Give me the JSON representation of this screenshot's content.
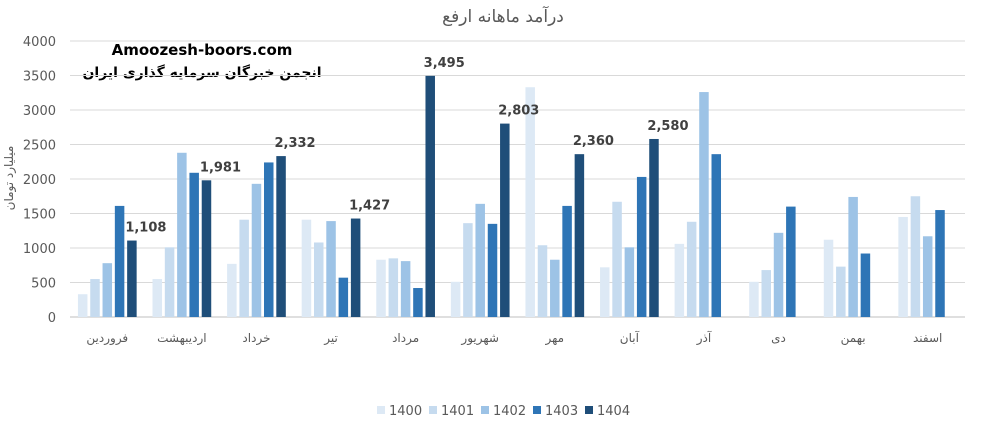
{
  "chart_data": {
    "type": "bar",
    "title": "درآمد ماهانه ارفع",
    "ylabel": "میلیارد تومان",
    "xlabel": "",
    "ylim": [
      0,
      4000
    ],
    "yticks": [
      0,
      500,
      1000,
      1500,
      2000,
      2500,
      3000,
      3500,
      4000
    ],
    "grid": true,
    "legend_position": "bottom",
    "watermark": {
      "line1": "Amoozesh-boors.com",
      "line2": "انجمن خبرگان سرمایه گذاری ایران"
    },
    "categories": [
      "فروردین",
      "اردیبهشت",
      "خرداد",
      "تیر",
      "مرداد",
      "شهریور",
      "مهر",
      "آبان",
      "آذر",
      "دی",
      "بهمن",
      "اسفند"
    ],
    "series": [
      {
        "name": "1400",
        "color": "#dde9f5",
        "values": [
          330,
          550,
          770,
          1410,
          830,
          510,
          3330,
          720,
          1060,
          510,
          1120,
          1450
        ]
      },
      {
        "name": "1401",
        "color": "#c6dbef",
        "values": [
          550,
          1010,
          1410,
          1080,
          850,
          1360,
          1040,
          1670,
          1380,
          680,
          730,
          1750
        ]
      },
      {
        "name": "1402",
        "color": "#9dc3e6",
        "values": [
          780,
          2380,
          1930,
          1390,
          810,
          1640,
          830,
          1010,
          3260,
          1220,
          1740,
          1170
        ]
      },
      {
        "name": "1403",
        "color": "#2e75b6",
        "values": [
          1610,
          2090,
          2240,
          570,
          420,
          1350,
          1610,
          2030,
          2360,
          1600,
          920,
          1550
        ]
      },
      {
        "name": "1404",
        "color": "#1f4e79",
        "values": [
          1108,
          1981,
          2332,
          1427,
          3495,
          2803,
          2360,
          2580,
          null,
          null,
          null,
          null
        ]
      }
    ],
    "data_labels": {
      "series": "1404",
      "labels": [
        "1,108",
        "1,981",
        "2,332",
        "1,427",
        "3,495",
        "2,803",
        "2,360",
        "2,580"
      ]
    }
  }
}
